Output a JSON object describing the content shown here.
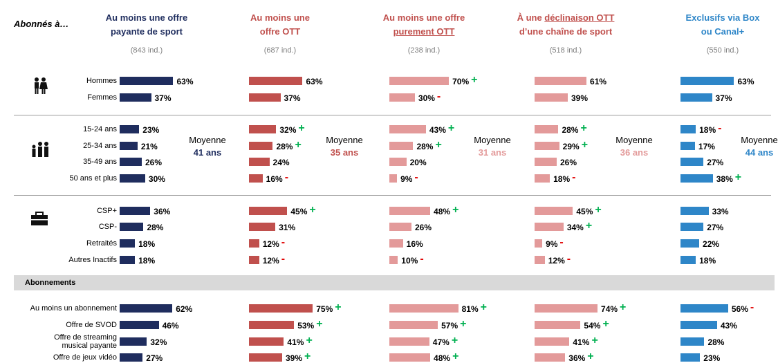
{
  "header": {
    "row_label": "Abonnés à…"
  },
  "sign_colors": {
    "+": "#00b050",
    "-": "#e00000"
  },
  "sections": [
    {
      "rows": [
        "Hommes",
        "Femmes"
      ]
    },
    {
      "rows": [
        "15-24 ans",
        "25-34 ans",
        "35-49 ans",
        "50 ans et plus"
      ]
    },
    {
      "rows": [
        "CSP+",
        "CSP-",
        "Retraités",
        "Autres Inactifs"
      ]
    },
    {
      "title": "Abonnements",
      "rows": [
        "Au moins un abonnement",
        "Offre de SVOD",
        "Offre de streaming\nmusical payante",
        "Offre de jeux vidéo"
      ]
    }
  ],
  "columns": [
    {
      "title": [
        [
          {
            "text": "Au moins une offre"
          }
        ],
        [
          {
            "text": "payante de sport"
          }
        ]
      ],
      "count": "(843 ind.)",
      "title_color": "#1f2d5e",
      "bar_color": "#1f2d5e",
      "mean_color": "#1f2d5e",
      "mean": {
        "label": "Moyenne",
        "value": "41 ans"
      },
      "cells": [
        [
          {
            "value": 63,
            "label": "63%"
          },
          {
            "value": 37,
            "label": "37%"
          }
        ],
        [
          {
            "value": 23,
            "label": "23%"
          },
          {
            "value": 21,
            "label": "21%"
          },
          {
            "value": 26,
            "label": "26%"
          },
          {
            "value": 30,
            "label": "30%"
          }
        ],
        [
          {
            "value": 36,
            "label": "36%"
          },
          {
            "value": 28,
            "label": "28%"
          },
          {
            "value": 18,
            "label": "18%"
          },
          {
            "value": 18,
            "label": "18%"
          }
        ],
        [
          {
            "value": 62,
            "label": "62%"
          },
          {
            "value": 46,
            "label": "46%"
          },
          {
            "value": 32,
            "label": "32%"
          },
          {
            "value": 27,
            "label": "27%"
          }
        ]
      ]
    },
    {
      "title": [
        [
          {
            "text": "Au moins une"
          }
        ],
        [
          {
            "text": "offre OTT"
          }
        ]
      ],
      "count": "(687 ind.)",
      "title_color": "#c0504d",
      "bar_color": "#c0504d",
      "mean_color": "#c0504d",
      "mean": {
        "label": "Moyenne",
        "value": "35 ans"
      },
      "cells": [
        [
          {
            "value": 63,
            "label": "63%"
          },
          {
            "value": 37,
            "label": "37%"
          }
        ],
        [
          {
            "value": 32,
            "label": "32%",
            "sig": "+"
          },
          {
            "value": 28,
            "label": "28%",
            "sig": "+"
          },
          {
            "value": 24,
            "label": "24%"
          },
          {
            "value": 16,
            "label": "16%",
            "sig": "-"
          }
        ],
        [
          {
            "value": 45,
            "label": "45%",
            "sig": "+"
          },
          {
            "value": 31,
            "label": "31%"
          },
          {
            "value": 12,
            "label": "12%",
            "sig": "-"
          },
          {
            "value": 12,
            "label": "12%",
            "sig": "-"
          }
        ],
        [
          {
            "value": 75,
            "label": "75%",
            "sig": "+"
          },
          {
            "value": 53,
            "label": "53%",
            "sig": "+"
          },
          {
            "value": 41,
            "label": "41%",
            "sig": "+"
          },
          {
            "value": 39,
            "label": "39%",
            "sig": "+"
          }
        ]
      ]
    },
    {
      "title": [
        [
          {
            "text": "Au moins une offre"
          }
        ],
        [
          {
            "text": "purement OTT",
            "underline": true
          }
        ]
      ],
      "count": "(238 ind.)",
      "title_color": "#c0504d",
      "bar_color": "#e39a9a",
      "mean_color": "#e39a9a",
      "mean": {
        "label": "Moyenne",
        "value": "31 ans"
      },
      "cells": [
        [
          {
            "value": 70,
            "label": "70%",
            "sig": "+"
          },
          {
            "value": 30,
            "label": "30%",
            "sig": "-"
          }
        ],
        [
          {
            "value": 43,
            "label": "43%",
            "sig": "+"
          },
          {
            "value": 28,
            "label": "28%",
            "sig": "+"
          },
          {
            "value": 20,
            "label": "20%"
          },
          {
            "value": 9,
            "label": "9%",
            "sig": "-"
          }
        ],
        [
          {
            "value": 48,
            "label": "48%",
            "sig": "+"
          },
          {
            "value": 26,
            "label": "26%"
          },
          {
            "value": 16,
            "label": "16%"
          },
          {
            "value": 10,
            "label": "10%",
            "sig": "-"
          }
        ],
        [
          {
            "value": 81,
            "label": "81%",
            "sig": "+"
          },
          {
            "value": 57,
            "label": "57%",
            "sig": "+"
          },
          {
            "value": 47,
            "label": "47%",
            "sig": "+"
          },
          {
            "value": 48,
            "label": "48%",
            "sig": "+"
          }
        ]
      ]
    },
    {
      "title": [
        [
          {
            "text": "À une "
          },
          {
            "text": "déclinaison OTT",
            "underline": true
          }
        ],
        [
          {
            "text": "d’une chaîne de sport"
          }
        ]
      ],
      "count": "(518 ind.)",
      "title_color": "#c0504d",
      "bar_color": "#e39a9a",
      "mean_color": "#e39a9a",
      "mean": {
        "label": "Moyenne",
        "value": "36 ans"
      },
      "cells": [
        [
          {
            "value": 61,
            "label": "61%"
          },
          {
            "value": 39,
            "label": "39%"
          }
        ],
        [
          {
            "value": 28,
            "label": "28%",
            "sig": "+"
          },
          {
            "value": 29,
            "label": "29%",
            "sig": "+"
          },
          {
            "value": 26,
            "label": "26%"
          },
          {
            "value": 18,
            "label": "18%",
            "sig": "-"
          }
        ],
        [
          {
            "value": 45,
            "label": "45%",
            "sig": "+"
          },
          {
            "value": 34,
            "label": "34%",
            "sig": "+"
          },
          {
            "value": 9,
            "label": "9%",
            "sig": "-"
          },
          {
            "value": 12,
            "label": "12%",
            "sig": "-"
          }
        ],
        [
          {
            "value": 74,
            "label": "74%",
            "sig": "+"
          },
          {
            "value": 54,
            "label": "54%",
            "sig": "+"
          },
          {
            "value": 41,
            "label": "41%",
            "sig": "+"
          },
          {
            "value": 36,
            "label": "36%",
            "sig": "+"
          }
        ]
      ]
    },
    {
      "title": [
        [
          {
            "text": "Exclusifs via Box"
          }
        ],
        [
          {
            "text": "ou Canal+"
          }
        ]
      ],
      "count": "(550 ind.)",
      "title_color": "#2e86c8",
      "bar_color": "#2e86c8",
      "mean_color": "#2e86c8",
      "mean": {
        "label": "Moyenne",
        "value": "44 ans"
      },
      "cells": [
        [
          {
            "value": 63,
            "label": "63%"
          },
          {
            "value": 37,
            "label": "37%"
          }
        ],
        [
          {
            "value": 18,
            "label": "18%",
            "sig": "-"
          },
          {
            "value": 17,
            "label": "17%"
          },
          {
            "value": 27,
            "label": "27%"
          },
          {
            "value": 38,
            "label": "38%",
            "sig": "+"
          }
        ],
        [
          {
            "value": 33,
            "label": "33%"
          },
          {
            "value": 27,
            "label": "27%"
          },
          {
            "value": 22,
            "label": "22%"
          },
          {
            "value": 18,
            "label": "18%"
          }
        ],
        [
          {
            "value": 56,
            "label": "56%",
            "sig": "-"
          },
          {
            "value": 43,
            "label": "43%"
          },
          {
            "value": 28,
            "label": "28%"
          },
          {
            "value": 23,
            "label": "23%"
          }
        ]
      ]
    }
  ]
}
